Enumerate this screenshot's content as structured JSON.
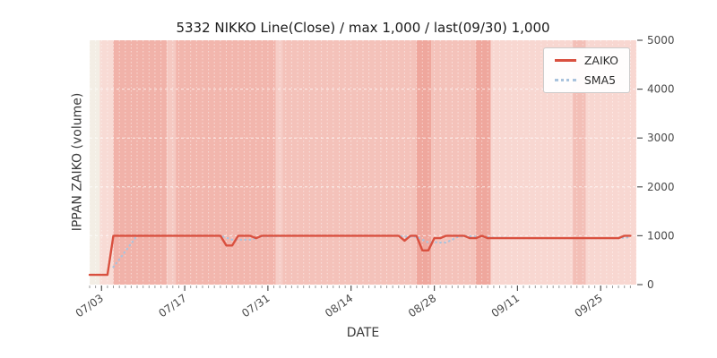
{
  "chart_data": {
    "type": "line",
    "title": "5332 NIKKO Line(Close) / max 1,000 / last(09/30) 1,000",
    "xlabel": "DATE",
    "ylabel": "IPPAN ZAIKO (volume)",
    "ylim": [
      0,
      5000
    ],
    "yticks": [
      0,
      1000,
      2000,
      3000,
      4000,
      5000
    ],
    "xtick_labels": [
      "07/03",
      "07/17",
      "07/31",
      "08/14",
      "08/28",
      "09/11",
      "09/25"
    ],
    "xtick_indices": [
      2,
      16,
      30,
      44,
      58,
      72,
      86
    ],
    "legend_position": "top-right",
    "grid": true,
    "sma_window": 5,
    "legend": [
      {
        "name": "ZAIKO",
        "color": "#d9503f",
        "style": "solid"
      },
      {
        "name": "SMA5",
        "color": "#a9c3dd",
        "style": "dotted"
      }
    ],
    "dates": [
      "07/01",
      "07/02",
      "07/03",
      "07/04",
      "07/05",
      "07/06",
      "07/07",
      "07/08",
      "07/09",
      "07/10",
      "07/11",
      "07/12",
      "07/13",
      "07/14",
      "07/15",
      "07/16",
      "07/17",
      "07/18",
      "07/19",
      "07/20",
      "07/21",
      "07/22",
      "07/23",
      "07/24",
      "07/25",
      "07/26",
      "07/27",
      "07/28",
      "07/29",
      "07/30",
      "07/31",
      "08/01",
      "08/02",
      "08/03",
      "08/04",
      "08/05",
      "08/06",
      "08/07",
      "08/08",
      "08/09",
      "08/10",
      "08/11",
      "08/12",
      "08/13",
      "08/14",
      "08/15",
      "08/16",
      "08/17",
      "08/18",
      "08/19",
      "08/20",
      "08/21",
      "08/22",
      "08/23",
      "08/24",
      "08/25",
      "08/26",
      "08/27",
      "08/28",
      "08/29",
      "08/30",
      "08/31",
      "09/01",
      "09/02",
      "09/03",
      "09/04",
      "09/05",
      "09/06",
      "09/07",
      "09/08",
      "09/09",
      "09/10",
      "09/11",
      "09/12",
      "09/13",
      "09/14",
      "09/15",
      "09/16",
      "09/17",
      "09/18",
      "09/19",
      "09/20",
      "09/21",
      "09/22",
      "09/23",
      "09/24",
      "09/25",
      "09/26",
      "09/27",
      "09/28",
      "09/29",
      "09/30"
    ],
    "series": [
      {
        "name": "ZAIKO",
        "values": [
          200,
          200,
          200,
          200,
          1000,
          1000,
          1000,
          1000,
          1000,
          1000,
          1000,
          1000,
          1000,
          1000,
          1000,
          1000,
          1000,
          1000,
          1000,
          1000,
          1000,
          1000,
          1000,
          800,
          800,
          1000,
          1000,
          1000,
          950,
          1000,
          1000,
          1000,
          1000,
          1000,
          1000,
          1000,
          1000,
          1000,
          1000,
          1000,
          1000,
          1000,
          1000,
          1000,
          1000,
          1000,
          1000,
          1000,
          1000,
          1000,
          1000,
          1000,
          1000,
          900,
          1000,
          1000,
          700,
          700,
          950,
          950,
          1000,
          1000,
          1000,
          1000,
          950,
          950,
          1000,
          950,
          950,
          950,
          950,
          950,
          950,
          950,
          950,
          950,
          950,
          950,
          950,
          950,
          950,
          950,
          950,
          950,
          950,
          950,
          950,
          950,
          950,
          950,
          1000,
          1000
        ]
      }
    ],
    "background_bands": [
      {
        "from": 0,
        "to": 1.7,
        "color": "#f3eee5"
      },
      {
        "from": 1.7,
        "to": 4,
        "color": "#f8dbd5"
      },
      {
        "from": 4,
        "to": 13,
        "color": "#f1b2a9"
      },
      {
        "from": 13,
        "to": 14.5,
        "color": "#f5c9c2"
      },
      {
        "from": 14.5,
        "to": 31.3,
        "color": "#f2b6ad"
      },
      {
        "from": 31.3,
        "to": 32.5,
        "color": "#f6cdc7"
      },
      {
        "from": 32.5,
        "to": 55,
        "color": "#f4c2ba"
      },
      {
        "from": 55,
        "to": 57.5,
        "color": "#efa79d"
      },
      {
        "from": 57.5,
        "to": 65,
        "color": "#f4c2ba"
      },
      {
        "from": 65,
        "to": 67.5,
        "color": "#efa79d"
      },
      {
        "from": 67.5,
        "to": 81.3,
        "color": "#f8d7d1"
      },
      {
        "from": 81.3,
        "to": 83.5,
        "color": "#f3bfb7"
      },
      {
        "from": 83.5,
        "to": 92,
        "color": "#f8d7d1"
      }
    ],
    "plot_colors": {
      "figure_bg": "#ffffff",
      "gridline": "#ffffff",
      "tick": "#555555",
      "label": "#4a4a4a"
    }
  }
}
